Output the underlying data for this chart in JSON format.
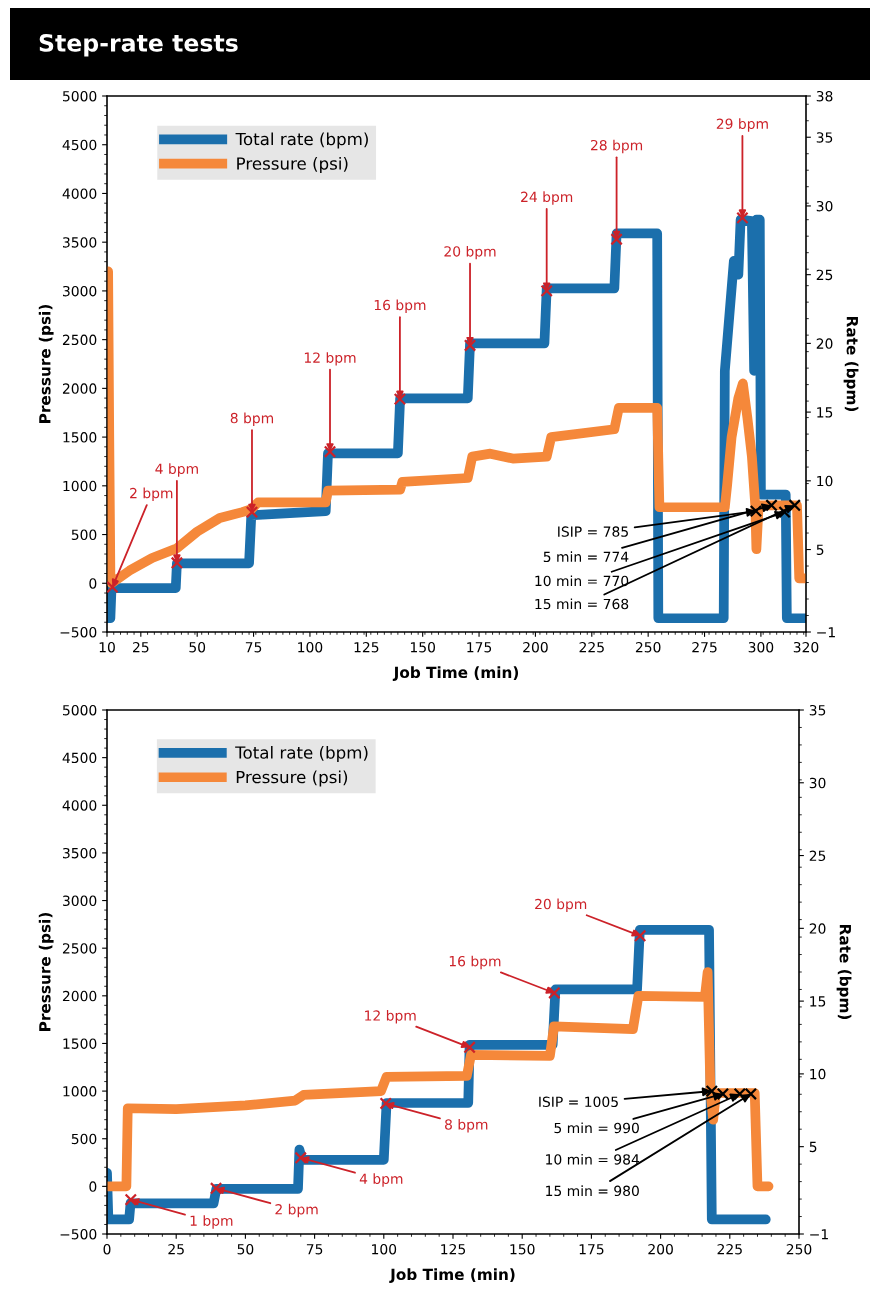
{
  "chart_data": [
    {
      "type": "line",
      "title": "Step-rate tests",
      "xlabel": "Job Time (min)",
      "ylabel": "Pressure (psi)",
      "y2label": "Rate (bpm)",
      "xlim": [
        10,
        320
      ],
      "xticks": [
        10,
        25,
        50,
        75,
        100,
        125,
        150,
        175,
        200,
        225,
        250,
        275,
        300,
        320
      ],
      "ylim": [
        -500,
        5000
      ],
      "yticks": [
        -500,
        0,
        500,
        1000,
        1500,
        2000,
        2500,
        3000,
        3500,
        4000,
        4500,
        5000
      ],
      "y2lim": [
        -1,
        38
      ],
      "y2ticks": [
        -1,
        5,
        10,
        15,
        20,
        25,
        30,
        35,
        38
      ],
      "grid": false,
      "legend": "top left",
      "series": [
        {
          "name": "Total rate (bpm)",
          "axis": "y2",
          "color": "#1b6fac",
          "marker": "none",
          "x": [
            10.5,
            11.5,
            12,
            40.5,
            41,
            73,
            74,
            107,
            108,
            139,
            140,
            170,
            171,
            204,
            205,
            235,
            236,
            254,
            254.5,
            283.5,
            284,
            286,
            288,
            290,
            291,
            296,
            297,
            298,
            299.5,
            300,
            311,
            311.5,
            320
          ],
          "values": [
            0,
            0,
            2.2,
            2.2,
            4,
            4,
            7.5,
            7.8,
            12,
            12,
            16,
            16,
            20,
            20,
            24,
            24,
            28,
            28,
            0,
            0,
            18,
            22,
            26,
            25,
            29,
            28.9,
            18,
            29,
            29,
            9,
            9,
            0,
            0
          ]
        },
        {
          "name": "Pressure (psi)",
          "axis": "y",
          "color": "#f5883a",
          "marker": "none",
          "x": [
            10.5,
            11,
            11.5,
            12,
            20,
            30,
            41,
            50,
            60,
            70,
            74,
            77,
            107,
            108,
            140,
            141,
            170,
            172,
            180,
            190,
            205,
            207,
            235,
            237,
            254,
            255,
            284,
            285,
            287,
            290,
            292,
            294,
            296,
            297.5,
            298,
            299,
            316,
            317,
            320
          ],
          "values": [
            3200,
            1500,
            100,
            0,
            130,
            260,
            360,
            530,
            670,
            730,
            760,
            830,
            830,
            950,
            960,
            1040,
            1080,
            1300,
            1330,
            1280,
            1300,
            1500,
            1580,
            1800,
            1800,
            780,
            780,
            1000,
            1500,
            1900,
            2050,
            1700,
            1300,
            800,
            350,
            800,
            800,
            50,
            50
          ]
        },
        {
          "type": "scatter",
          "axis": "y",
          "color": "#cc2229",
          "marker": "cross",
          "x": [
            12.4,
            41,
            74.3,
            108.9,
            139.9,
            171,
            205,
            236,
            291.8
          ],
          "values": [
            -40,
            210,
            730,
            1350,
            1890,
            2440,
            3000,
            3530,
            3750
          ]
        },
        {
          "type": "scatter",
          "axis": "y",
          "color": "#000000",
          "marker": "cross",
          "x": [
            297.8,
            304.7,
            310.5,
            315
          ],
          "values": [
            740,
            800,
            730,
            800
          ]
        }
      ],
      "annotations": [
        {
          "text": "2 bpm",
          "x": 12.4,
          "y": -40
        },
        {
          "text": "4 bpm",
          "x": 41,
          "y": 210
        },
        {
          "text": "8 bpm",
          "x": 74.3,
          "y": 730
        },
        {
          "text": "12 bpm",
          "x": 108.9,
          "y": 1350
        },
        {
          "text": "16 bpm",
          "x": 139.9,
          "y": 1890
        },
        {
          "text": "20 bpm",
          "x": 171,
          "y": 2440
        },
        {
          "text": "24 bpm",
          "x": 205,
          "y": 3000
        },
        {
          "text": "28 bpm",
          "x": 236,
          "y": 3530
        },
        {
          "text": "29 bpm",
          "x": 291.8,
          "y": 3750
        },
        {
          "text": "ISIP = 785",
          "x": 297.8,
          "y": 740
        },
        {
          "text": "5 min = 774",
          "x": 304.7,
          "y": 800
        },
        {
          "text": "10 min = 770",
          "x": 310.5,
          "y": 730
        },
        {
          "text": "15 min = 768",
          "x": 315,
          "y": 800
        }
      ]
    },
    {
      "type": "line",
      "xlabel": "Job Time (min)",
      "ylabel": "Pressure (psi)",
      "y2label": "Rate (bpm)",
      "xlim": [
        0,
        250
      ],
      "xticks": [
        0,
        25,
        50,
        75,
        100,
        125,
        150,
        175,
        200,
        225,
        250
      ],
      "ylim": [
        -500,
        5000
      ],
      "yticks": [
        -500,
        0,
        500,
        1000,
        1500,
        2000,
        2500,
        3000,
        3500,
        4000,
        4500,
        5000
      ],
      "y2lim": [
        -1,
        35
      ],
      "y2ticks": [
        -1,
        5,
        10,
        15,
        20,
        25,
        30,
        35
      ],
      "grid": false,
      "legend": "top left",
      "series": [
        {
          "name": "Total rate (bpm)",
          "axis": "y2",
          "color": "#1b6fac",
          "marker": "none",
          "x": [
            0,
            0.5,
            8,
            8.5,
            38.5,
            39.5,
            69,
            69.5,
            70.5,
            100,
            101,
            130.5,
            131,
            161,
            162,
            191.5,
            192.5,
            217.5,
            218.5,
            238
          ],
          "values": [
            3.2,
            0,
            0,
            1.1,
            1.1,
            2.1,
            2.1,
            4.8,
            4.1,
            4.1,
            8,
            8,
            12,
            12,
            15.8,
            15.8,
            19.9,
            19.9,
            0,
            0
          ]
        },
        {
          "name": "Pressure (psi)",
          "axis": "y",
          "color": "#f5883a",
          "marker": "none",
          "x": [
            0,
            7,
            7.5,
            25,
            50,
            68,
            71,
            99,
            101,
            130,
            131.5,
            160,
            161.5,
            190,
            192,
            216,
            217,
            218,
            219,
            220,
            234,
            235,
            239
          ],
          "values": [
            0,
            0,
            820,
            810,
            850,
            900,
            960,
            1000,
            1150,
            1160,
            1380,
            1370,
            1680,
            1650,
            2000,
            1990,
            2250,
            1000,
            700,
            980,
            980,
            0,
            0
          ]
        },
        {
          "type": "scatter",
          "axis": "y",
          "color": "#cc2229",
          "marker": "cross",
          "x": [
            8.6,
            39.4,
            70,
            100.7,
            131,
            161.6,
            192.6
          ],
          "values": [
            -140,
            -20,
            300,
            870,
            1460,
            2030,
            2630
          ]
        },
        {
          "type": "scatter",
          "axis": "y",
          "color": "#000000",
          "marker": "cross",
          "x": [
            218.5,
            222.5,
            228.6,
            232.6
          ],
          "values": [
            1000,
            970,
            970,
            970
          ]
        }
      ],
      "annotations": [
        {
          "text": "1 bpm",
          "x": 8.6,
          "y": -140
        },
        {
          "text": "2 bpm",
          "x": 39.4,
          "y": -20
        },
        {
          "text": "4 bpm",
          "x": 70,
          "y": 300
        },
        {
          "text": "8 bpm",
          "x": 100.7,
          "y": 870
        },
        {
          "text": "12 bpm",
          "x": 131,
          "y": 1460
        },
        {
          "text": "16 bpm",
          "x": 161.6,
          "y": 2030
        },
        {
          "text": "20 bpm",
          "x": 192.6,
          "y": 2630
        },
        {
          "text": "ISIP = 1005",
          "x": 218.5,
          "y": 1000
        },
        {
          "text": "5 min = 990",
          "x": 222.5,
          "y": 970
        },
        {
          "text": "10 min = 984",
          "x": 228.6,
          "y": 970
        },
        {
          "text": "15 min = 980",
          "x": 232.6,
          "y": 970
        }
      ]
    }
  ]
}
